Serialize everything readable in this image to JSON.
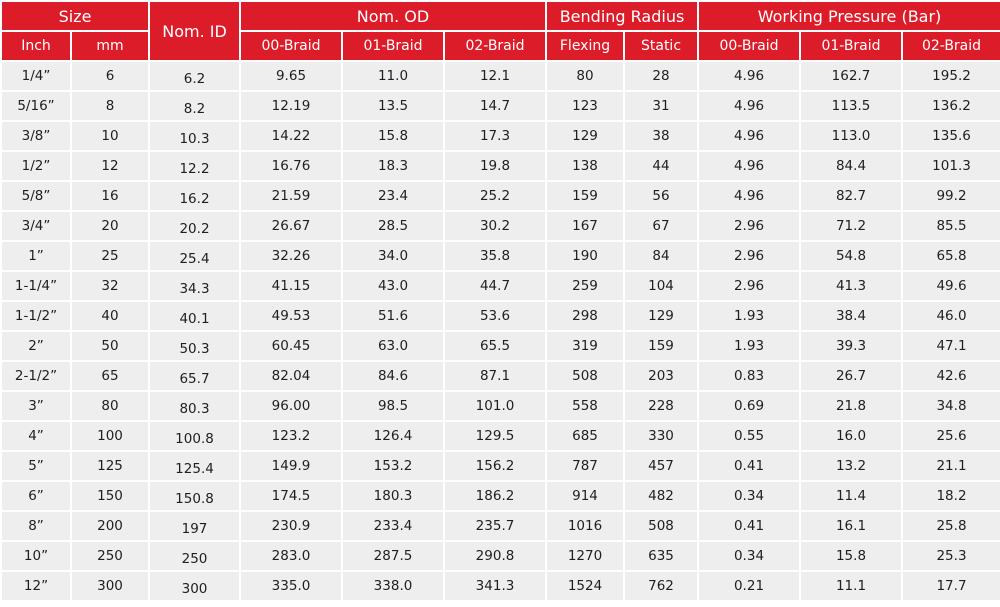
{
  "table": {
    "headers": {
      "size": "Size",
      "nom_id": "Nom. ID",
      "nom_od": "Nom. OD",
      "bending_radius": "Bending Radius",
      "working_pressure": "Working Pressure (Bar)",
      "inch": "Inch",
      "mm": "mm",
      "od_00": "00-Braid",
      "od_01": "01-Braid",
      "od_02": "02-Braid",
      "flexing": "Flexing",
      "static": "Static",
      "wp_00": "00-Braid",
      "wp_01": "01-Braid",
      "wp_02": "02-Braid"
    },
    "rows": [
      [
        "1/4”",
        "6",
        "6.2",
        "9.65",
        "11.0",
        "12.1",
        "80",
        "28",
        "4.96",
        "162.7",
        "195.2"
      ],
      [
        "5/16”",
        "8",
        "8.2",
        "12.19",
        "13.5",
        "14.7",
        "123",
        "31",
        "4.96",
        "113.5",
        "136.2"
      ],
      [
        "3/8”",
        "10",
        "10.3",
        "14.22",
        "15.8",
        "17.3",
        "129",
        "38",
        "4.96",
        "113.0",
        "135.6"
      ],
      [
        "1/2”",
        "12",
        "12.2",
        "16.76",
        "18.3",
        "19.8",
        "138",
        "44",
        "4.96",
        "84.4",
        "101.3"
      ],
      [
        "5/8”",
        "16",
        "16.2",
        "21.59",
        "23.4",
        "25.2",
        "159",
        "56",
        "4.96",
        "82.7",
        "99.2"
      ],
      [
        "3/4”",
        "20",
        "20.2",
        "26.67",
        "28.5",
        "30.2",
        "167",
        "67",
        "2.96",
        "71.2",
        "85.5"
      ],
      [
        "1”",
        "25",
        "25.4",
        "32.26",
        "34.0",
        "35.8",
        "190",
        "84",
        "2.96",
        "54.8",
        "65.8"
      ],
      [
        "1-1/4”",
        "32",
        "34.3",
        "41.15",
        "43.0",
        "44.7",
        "259",
        "104",
        "2.96",
        "41.3",
        "49.6"
      ],
      [
        "1-1/2”",
        "40",
        "40.1",
        "49.53",
        "51.6",
        "53.6",
        "298",
        "129",
        "1.93",
        "38.4",
        "46.0"
      ],
      [
        "2”",
        "50",
        "50.3",
        "60.45",
        "63.0",
        "65.5",
        "319",
        "159",
        "1.93",
        "39.3",
        "47.1"
      ],
      [
        "2-1/2”",
        "65",
        "65.7",
        "82.04",
        "84.6",
        "87.1",
        "508",
        "203",
        "0.83",
        "26.7",
        "42.6"
      ],
      [
        "3”",
        "80",
        "80.3",
        "96.00",
        "98.5",
        "101.0",
        "558",
        "228",
        "0.69",
        "21.8",
        "34.8"
      ],
      [
        "4”",
        "100",
        "100.8",
        "123.2",
        "126.4",
        "129.5",
        "685",
        "330",
        "0.55",
        "16.0",
        "25.6"
      ],
      [
        "5”",
        "125",
        "125.4",
        "149.9",
        "153.2",
        "156.2",
        "787",
        "457",
        "0.41",
        "13.2",
        "21.1"
      ],
      [
        "6”",
        "150",
        "150.8",
        "174.5",
        "180.3",
        "186.2",
        "914",
        "482",
        "0.34",
        "11.4",
        "18.2"
      ],
      [
        "8”",
        "200",
        "197",
        "230.9",
        "233.4",
        "235.7",
        "1016",
        "508",
        "0.41",
        "16.1",
        "25.8"
      ],
      [
        "10”",
        "250",
        "250",
        "283.0",
        "287.5",
        "290.8",
        "1270",
        "635",
        "0.34",
        "15.8",
        "25.3"
      ],
      [
        "12”",
        "300",
        "300",
        "335.0",
        "338.0",
        "341.3",
        "1524",
        "762",
        "0.21",
        "11.1",
        "17.7"
      ]
    ]
  }
}
